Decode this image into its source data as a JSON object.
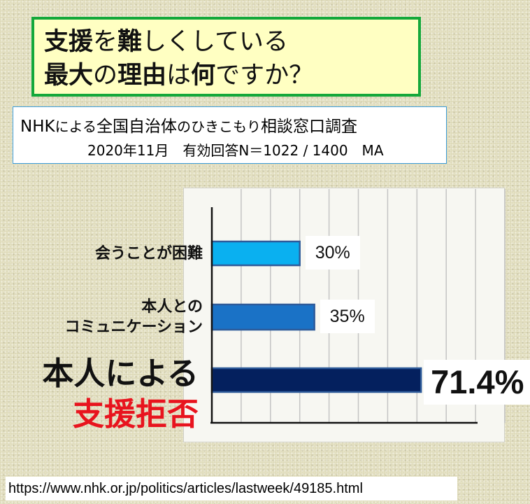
{
  "title": {
    "line1": [
      {
        "text": "支援",
        "bold": true
      },
      {
        "text": "を",
        "bold": false
      },
      {
        "text": "難",
        "bold": true
      },
      {
        "text": "しくしている",
        "bold": false
      }
    ],
    "line2": [
      {
        "text": "最大",
        "bold": true
      },
      {
        "text": "の",
        "bold": false
      },
      {
        "text": "理由",
        "bold": true
      },
      {
        "text": "は",
        "bold": false
      },
      {
        "text": "何",
        "bold": true
      },
      {
        "text": "ですか？",
        "bold": false
      }
    ]
  },
  "subtitle": {
    "line1_parts": [
      {
        "text": "NHK",
        "small": false
      },
      {
        "text": "による",
        "small": true
      },
      {
        "text": "全国自治体",
        "small": false
      },
      {
        "text": "のひきこもり",
        "small": true
      },
      {
        "text": "相談窓口調査",
        "small": false
      }
    ],
    "line2": "2020年11月　有効回答N＝1022 / 1400　MA"
  },
  "chart_data": {
    "type": "bar",
    "orientation": "horizontal",
    "categories": [
      {
        "lines": [
          "会うことが困難"
        ],
        "color": "#111111",
        "size": "normal"
      },
      {
        "lines": [
          "本人との",
          "コミュニケーション"
        ],
        "color": "#111111",
        "size": "normal"
      },
      {
        "lines": [
          "本人による",
          "支援拒否"
        ],
        "color": "#111111",
        "line_colors": [
          "#111111",
          "#e8141e"
        ],
        "size": "large"
      }
    ],
    "values": [
      30,
      35,
      71.4
    ],
    "value_labels": [
      "30%",
      "35%",
      "71.4%"
    ],
    "bar_colors": [
      "#0ab0f0",
      "#1a72c6",
      "#04205e"
    ],
    "bar_border_color": "#2e5b9a",
    "xlim": [
      0,
      100
    ],
    "grid": true,
    "tick_labels_shown": false
  },
  "source_url": "https://www.nhk.or.jp/politics/articles/lastweek/49185.html"
}
